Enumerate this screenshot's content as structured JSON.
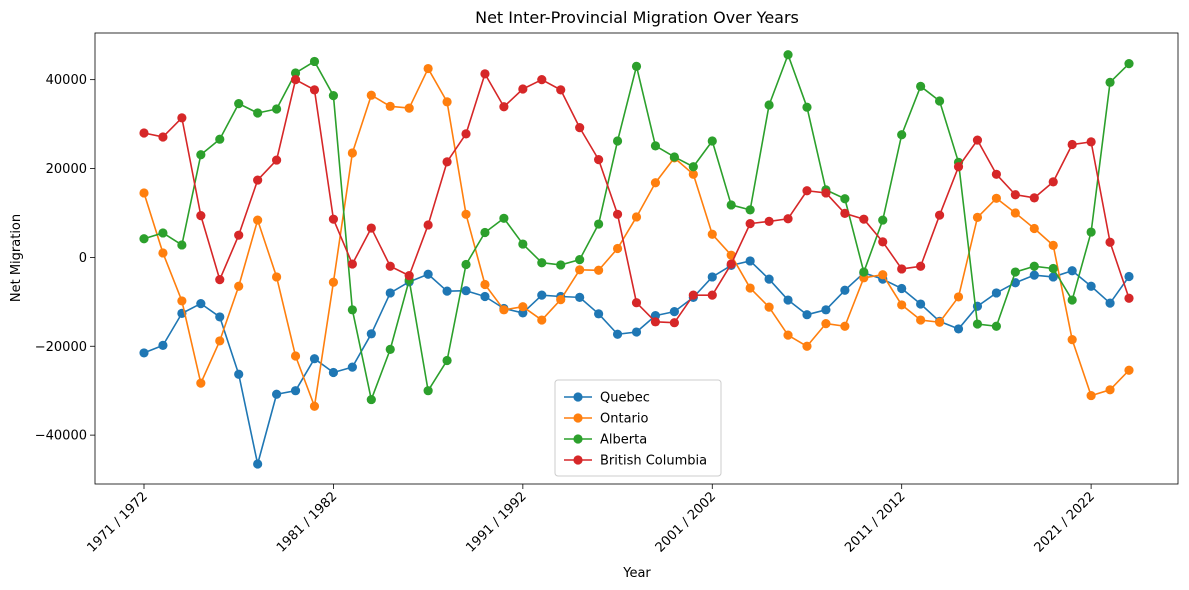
{
  "chart_data": {
    "type": "line",
    "title": "Net Inter-Provincial Migration Over Years",
    "xlabel": "Year",
    "ylabel": "Net Migration",
    "x_tick_labels": [
      "1971 / 1972",
      "1981 / 1982",
      "1991 / 1992",
      "2001 / 2002",
      "2011 / 2012",
      "2021 / 2022"
    ],
    "y_ticks": [
      -40000,
      -20000,
      0,
      20000,
      40000
    ],
    "ylim": [
      -51000,
      50500
    ],
    "grid": false,
    "legend_position": "lower center",
    "x": [
      "1971 / 1972",
      "1972 / 1973",
      "1973 / 1974",
      "1974 / 1975",
      "1975 / 1976",
      "1976 / 1977",
      "1977 / 1978",
      "1978 / 1979",
      "1979 / 1980",
      "1980 / 1981",
      "1981 / 1982",
      "1982 / 1983",
      "1983 / 1984",
      "1984 / 1985",
      "1985 / 1986",
      "1986 / 1987",
      "1987 / 1988",
      "1988 / 1989",
      "1989 / 1990",
      "1990 / 1991",
      "1991 / 1992",
      "1992 / 1993",
      "1993 / 1994",
      "1994 / 1995",
      "1995 / 1996",
      "1996 / 1997",
      "1997 / 1998",
      "1998 / 1999",
      "1999 / 2000",
      "2000 / 2001",
      "2001 / 2002",
      "2002 / 2003",
      "2003 / 2004",
      "2004 / 2005",
      "2005 / 2006",
      "2006 / 2007",
      "2007 / 2008",
      "2008 / 2009",
      "2009 / 2010",
      "2010 / 2011",
      "2011 / 2012",
      "2012 / 2013",
      "2013 / 2014",
      "2014 / 2015",
      "2015 / 2016",
      "2016 / 2017",
      "2017 / 2018",
      "2018 / 2019",
      "2019 / 2020",
      "2020 / 2021",
      "2021 / 2022",
      "2022 / 2023",
      "2023 / 2024"
    ],
    "series": [
      {
        "name": "Quebec",
        "color": "#1f77b4",
        "values": [
          -21500,
          -19800,
          -12600,
          -10400,
          -13400,
          -26300,
          -46500,
          -30800,
          -30000,
          -22800,
          -25900,
          -24700,
          -17200,
          -8000,
          -5500,
          -3800,
          -7600,
          -7500,
          -8800,
          -11500,
          -12500,
          -8500,
          -8800,
          -9000,
          -12700,
          -17300,
          -16800,
          -13100,
          -12200,
          -9000,
          -4400,
          -1800,
          -800,
          -4900,
          -9600,
          -12900,
          -11800,
          -7400,
          -3500,
          -4900,
          -7000,
          -10500,
          -14400,
          -16100,
          -11000,
          -8000,
          -5700,
          -4000,
          -4400,
          -3000,
          -6500,
          -10300,
          -4300
        ]
      },
      {
        "name": "Ontario",
        "color": "#ff7f0e",
        "values": [
          14500,
          1000,
          -9800,
          -28300,
          -18800,
          -6500,
          8400,
          -4400,
          -22200,
          -33500,
          -5600,
          23500,
          36500,
          34000,
          33600,
          42500,
          35000,
          9700,
          -6100,
          -11800,
          -11100,
          -14100,
          -9500,
          -2800,
          -2900,
          2000,
          9100,
          16800,
          22400,
          18700,
          5200,
          500,
          -6900,
          -11200,
          -17500,
          -20000,
          -14900,
          -15500,
          -4600,
          -3900,
          -10700,
          -14100,
          -14600,
          -8900,
          9000,
          13300,
          10000,
          6500,
          2700,
          -18500,
          -31100,
          -29800,
          -25400
        ]
      },
      {
        "name": "Alberta",
        "color": "#2ca02c",
        "values": [
          4200,
          5500,
          2800,
          23100,
          26600,
          34600,
          32500,
          33400,
          41500,
          44100,
          36400,
          -11800,
          -32000,
          -20700,
          -5100,
          -30000,
          -23200,
          -1600,
          5600,
          8800,
          3000,
          -1200,
          -1700,
          -500,
          7500,
          26200,
          43000,
          25100,
          22600,
          20400,
          26200,
          11800,
          10700,
          34300,
          45600,
          33800,
          15200,
          13200,
          -3300,
          8400,
          27600,
          38500,
          35200,
          21400,
          -15000,
          -15500,
          -3300,
          -2000,
          -2500,
          -9600,
          5700,
          39400,
          43600
        ]
      },
      {
        "name": "British Columbia",
        "color": "#d62728",
        "values": [
          28000,
          27100,
          31400,
          9400,
          -5000,
          5000,
          17400,
          21900,
          40000,
          37700,
          8600,
          -1500,
          6600,
          -2000,
          -4100,
          7300,
          21500,
          27800,
          41300,
          33900,
          37900,
          40000,
          37700,
          29200,
          22000,
          9700,
          -10200,
          -14500,
          -14700,
          -8500,
          -8500,
          -1500,
          7600,
          8100,
          8700,
          15000,
          14500,
          9900,
          8600,
          3500,
          -2600,
          -2000,
          9500,
          20400,
          26400,
          18700,
          14100,
          13400,
          17000,
          25400,
          26000,
          3400,
          -9200
        ]
      }
    ]
  }
}
